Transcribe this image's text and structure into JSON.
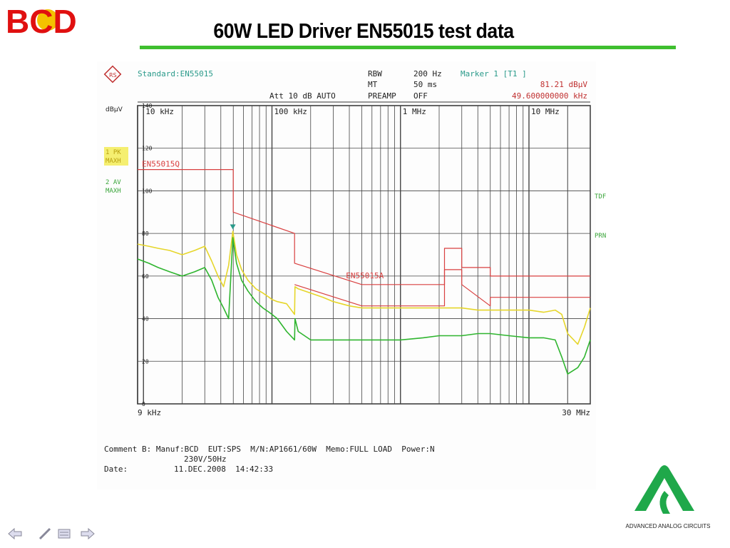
{
  "slide": {
    "company_logo": "BCD",
    "title": "60W LED Driver EN55015 test data",
    "footer_logo_text": "ADVANCED ANALOG CIRCUITS"
  },
  "colors": {
    "title_rule": "#3fbf2f",
    "pk_trace": "#e6d62a",
    "av_trace": "#2fb52f",
    "limit_lines": "#d94040",
    "header_teal": "#2a9a8a",
    "side_label_green": "#3aa53a"
  },
  "analyzer": {
    "standard": "Standard:EN55015",
    "rbw_label": "RBW",
    "rbw_value": "200 Hz",
    "mt_label": "MT",
    "mt_value": "50 ms",
    "att": "Att 10 dB AUTO",
    "preamp_label": "PREAMP",
    "preamp_value": "OFF",
    "marker": "Marker 1 [T1 ]",
    "marker_level": "81.21 dBµV",
    "marker_freq": "49.600000000 kHz",
    "unit": "dBµV",
    "trace1_label": [
      "1 PK",
      "MAXH"
    ],
    "trace2_label": [
      "2 AV",
      "MAXH"
    ],
    "right_label_1": "TDF",
    "right_label_2": "PRN"
  },
  "comment": {
    "line1": "Comment B: Manuf:BCD  EUT:SPS  M/N:AP1661/60W  Memo:FULL LOAD  Power:N",
    "line2": "230V/50Hz",
    "date_label": "Date:",
    "date_value": "11.DEC.2008  14:42:33"
  },
  "chart_data": {
    "type": "line",
    "title": "",
    "xlabel": "",
    "ylabel": "dBµV",
    "x_scale": "log",
    "xlim": [
      9000,
      30000000
    ],
    "ylim": [
      0,
      140
    ],
    "grid": true,
    "x_tick_labels": [
      "9 kHz",
      "10 kHz",
      "100 kHz",
      "1 MHz",
      "10 MHz",
      "30 MHz"
    ],
    "x_ticks_hz": [
      9000,
      10000,
      100000,
      1000000,
      10000000,
      30000000
    ],
    "y_ticks": [
      0,
      20,
      40,
      60,
      80,
      100,
      120,
      140
    ],
    "series": [
      {
        "name": "1 PK MAXH",
        "color_key": "pk_trace",
        "x": [
          9000,
          11000,
          13000,
          16000,
          20000,
          25000,
          30000,
          34000,
          38000,
          42000,
          46000,
          49600,
          53000,
          58000,
          65000,
          75000,
          85000,
          95000,
          100000,
          110000,
          130000,
          150000,
          151000,
          160000,
          200000,
          250000,
          300000,
          400000,
          500000,
          700000,
          1000000,
          1500000,
          2000000,
          3000000,
          4000000,
          5000000,
          7000000,
          10000000,
          13000000,
          16000000,
          18000000,
          20000000,
          24000000,
          27000000,
          30000000
        ],
        "values": [
          75,
          74,
          73,
          72,
          70,
          72,
          74,
          67,
          60,
          55,
          65,
          81,
          70,
          63,
          58,
          54,
          52,
          50,
          49,
          48,
          47,
          42,
          55,
          54,
          52,
          50,
          48,
          46,
          45,
          45,
          45,
          45,
          45,
          45,
          44,
          44,
          44,
          44,
          43,
          44,
          42,
          33,
          28,
          36,
          45
        ]
      },
      {
        "name": "2 AV MAXH",
        "color_key": "av_trace",
        "x": [
          9000,
          11000,
          13000,
          16000,
          20000,
          25000,
          30000,
          34000,
          38000,
          42000,
          46000,
          49600,
          53000,
          58000,
          65000,
          75000,
          85000,
          95000,
          100000,
          110000,
          130000,
          150000,
          151000,
          160000,
          200000,
          250000,
          300000,
          400000,
          500000,
          700000,
          1000000,
          1500000,
          2000000,
          3000000,
          4000000,
          5000000,
          7000000,
          10000000,
          13000000,
          16000000,
          18000000,
          20000000,
          24000000,
          27000000,
          30000000
        ],
        "values": [
          68,
          66,
          64,
          62,
          60,
          62,
          64,
          58,
          50,
          45,
          40,
          78,
          66,
          58,
          53,
          48,
          45,
          43,
          42,
          40,
          34,
          30,
          40,
          34,
          30,
          30,
          30,
          30,
          30,
          30,
          30,
          31,
          32,
          32,
          33,
          33,
          32,
          31,
          31,
          30,
          22,
          14,
          17,
          22,
          30
        ]
      },
      {
        "name": "EN55015Q",
        "color_key": "limit_lines",
        "x": [
          9000,
          50000,
          50000,
          150000,
          150000,
          500000,
          500000,
          2200000,
          2200000,
          3000000,
          3000000,
          5000000,
          5000000,
          30000000
        ],
        "values": [
          110,
          110,
          90,
          80,
          66,
          56,
          56,
          56,
          73,
          73,
          64,
          64,
          60,
          60
        ]
      },
      {
        "name": "EN55015A",
        "color_key": "limit_lines",
        "x": [
          150000,
          500000,
          500000,
          2200000,
          2200000,
          3000000,
          3000000,
          5000000,
          5000000,
          30000000
        ],
        "values": [
          56,
          46,
          46,
          46,
          63,
          63,
          56,
          46,
          50,
          50
        ]
      }
    ],
    "annotations": [
      "EN55015Q",
      "EN55015A"
    ],
    "marker": {
      "label": "Marker 1 [T1 ]",
      "x": 49600,
      "y": 81.21
    }
  }
}
